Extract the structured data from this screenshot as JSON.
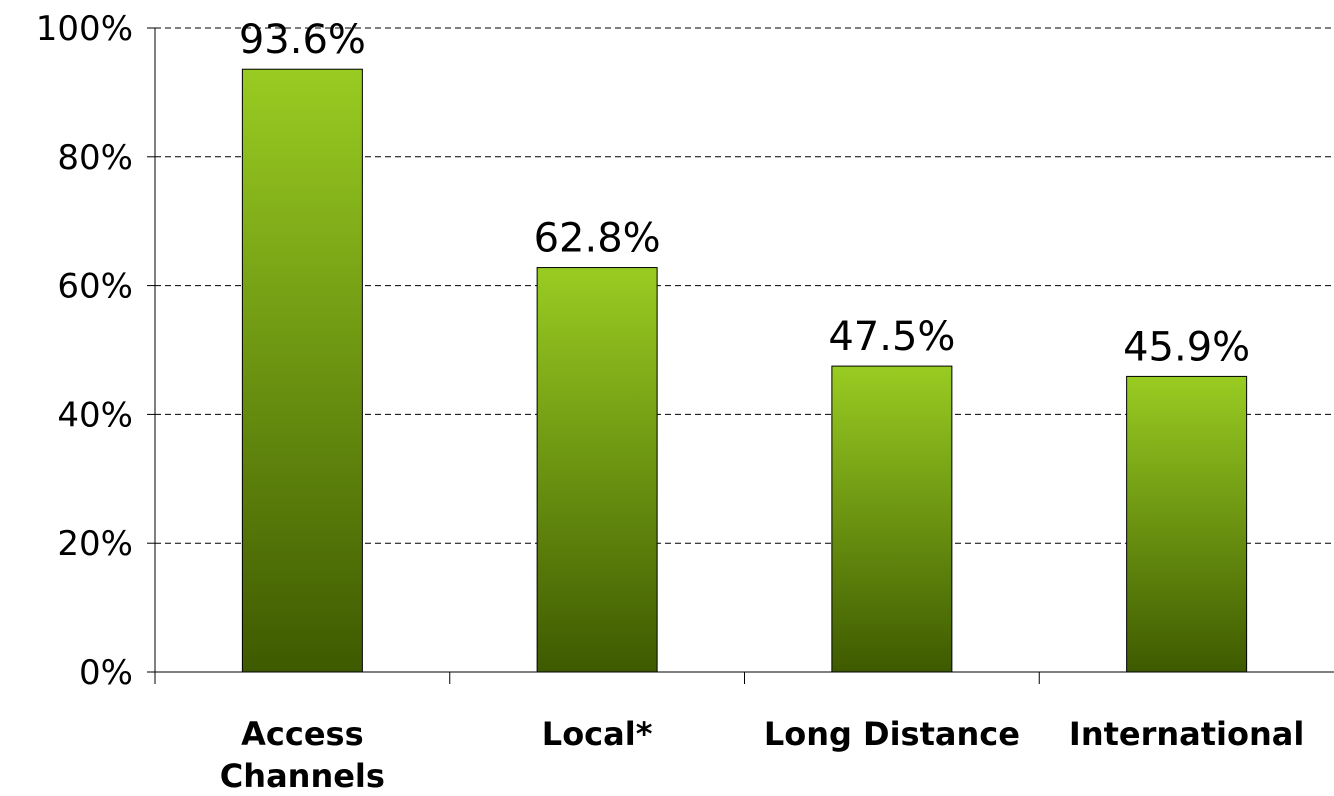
{
  "chart_data": {
    "type": "bar",
    "categories": [
      "Access Channels",
      "Local*",
      "Long Distance",
      "International"
    ],
    "category_lines": [
      [
        "Access",
        "Channels"
      ],
      [
        "Local*"
      ],
      [
        "Long Distance"
      ],
      [
        "International"
      ]
    ],
    "values": [
      93.6,
      62.8,
      47.5,
      45.9
    ],
    "data_labels": [
      "93.6%",
      "62.8%",
      "47.5%",
      "45.9%"
    ],
    "ylim": [
      0,
      100
    ],
    "yticks": [
      0,
      20,
      40,
      60,
      80,
      100
    ],
    "ytick_labels": [
      "0%",
      "20%",
      "40%",
      "60%",
      "80%",
      "100%"
    ],
    "title": "",
    "xlabel": "",
    "ylabel": "",
    "grid": true,
    "legend": "none",
    "colors": {
      "bar_top": "#99cc22",
      "bar_bottom": "#3e5a00",
      "grid": "#000000"
    }
  }
}
